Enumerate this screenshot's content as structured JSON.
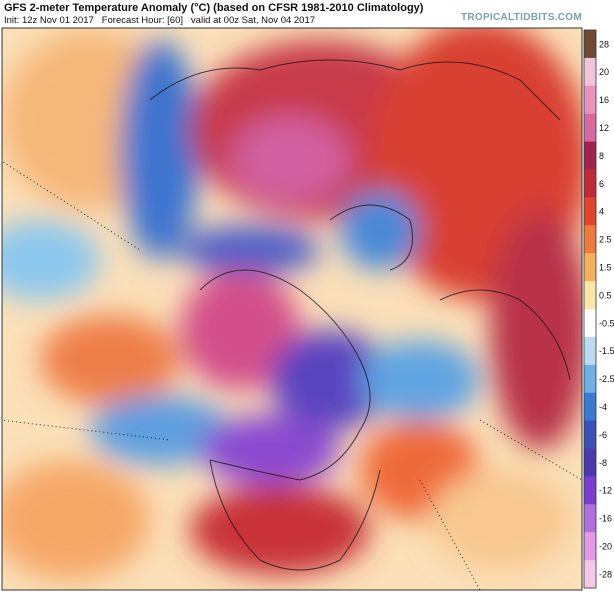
{
  "header": {
    "title": "GFS 2-meter Temperature Anomaly (°C) (based on CFSR 1981-2010 Climatology)",
    "info": "Init: 12z Nov 01 2017   Forecast Hour: [60]   valid at 00z Sat, Nov 04 2017",
    "watermark": "TROPICALTIDBITS.COM"
  },
  "legend": {
    "labels": [
      28,
      20,
      16,
      12,
      8,
      6,
      4,
      2.5,
      1.5,
      0.5,
      -0.5,
      -1.5,
      -2.5,
      -4,
      -6,
      -8,
      -12,
      -16,
      -20,
      -28
    ],
    "colors": [
      "#6e4a32",
      "#f2c4d8",
      "#e993bd",
      "#d86a9f",
      "#a3234f",
      "#c0293a",
      "#e2452c",
      "#f07a3a",
      "#f6b25a",
      "#fbe6a8",
      "#ffffff",
      "#b9dcf2",
      "#6fb0e6",
      "#3b7ad2",
      "#3a4fb8",
      "#4a3ab0",
      "#7a3ed0",
      "#b071e0",
      "#e09ae6",
      "#f5c7e8"
    ]
  }
}
